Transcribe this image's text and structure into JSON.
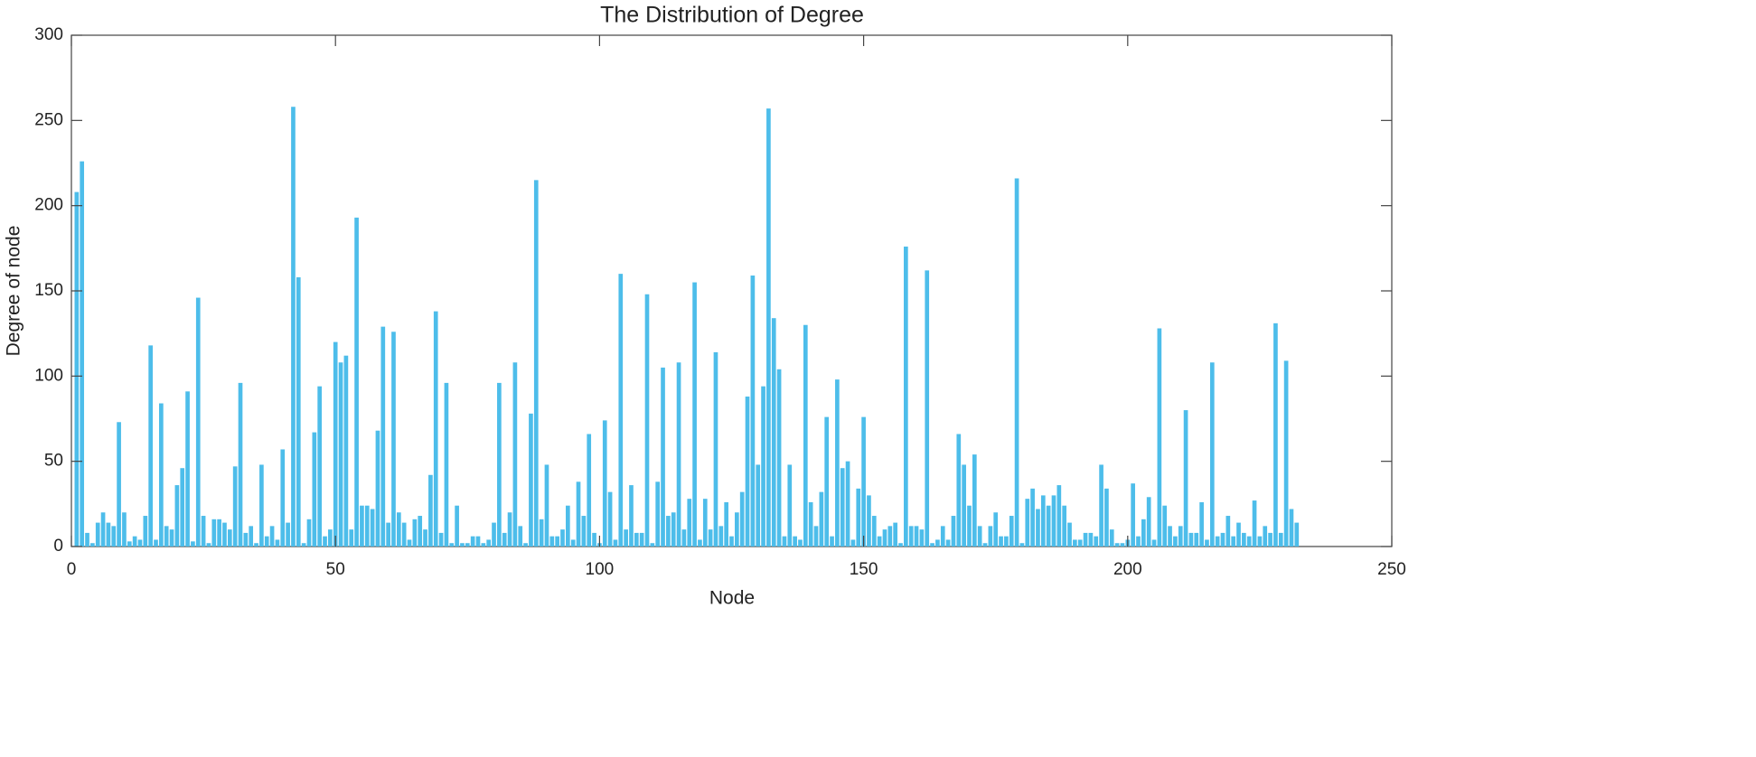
{
  "chart_data": {
    "type": "bar",
    "title": "The Distribution of Degree",
    "xlabel": "Node",
    "ylabel": "Degree of node",
    "color": "#4dbdea",
    "x": [
      1,
      2,
      3,
      4,
      5,
      6,
      7,
      8,
      9,
      10,
      11,
      12,
      13,
      14,
      15,
      16,
      17,
      18,
      19,
      20,
      21,
      22,
      23,
      24,
      25,
      26,
      27,
      28,
      29,
      30,
      31,
      32,
      33,
      34,
      35,
      36,
      37,
      38,
      39,
      40,
      41,
      42,
      43,
      44,
      45,
      46,
      47,
      48,
      49,
      50,
      51,
      52,
      53,
      54,
      55,
      56,
      57,
      58,
      59,
      60,
      61,
      62,
      63,
      64,
      65,
      66,
      67,
      68,
      69,
      70,
      71,
      72,
      73,
      74,
      75,
      76,
      77,
      78,
      79,
      80,
      81,
      82,
      83,
      84,
      85,
      86,
      87,
      88,
      89,
      90,
      91,
      92,
      93,
      94,
      95,
      96,
      97,
      98,
      99,
      100,
      101,
      102,
      103,
      104,
      105,
      106,
      107,
      108,
      109,
      110,
      111,
      112,
      113,
      114,
      115,
      116,
      117,
      118,
      119,
      120,
      121,
      122,
      123,
      124,
      125,
      126,
      127,
      128,
      129,
      130,
      131,
      132,
      133,
      134,
      135,
      136,
      137,
      138,
      139,
      140,
      141,
      142,
      143,
      144,
      145,
      146,
      147,
      148,
      149,
      150,
      151,
      152,
      153,
      154,
      155,
      156,
      157,
      158,
      159,
      160,
      161,
      162,
      163,
      164,
      165,
      166,
      167,
      168,
      169,
      170,
      171,
      172,
      173,
      174,
      175,
      176,
      177,
      178,
      179,
      180,
      181,
      182,
      183,
      184,
      185,
      186,
      187,
      188,
      189,
      190,
      191,
      192,
      193,
      194,
      195,
      196,
      197,
      198,
      199,
      200,
      201,
      202,
      203,
      204,
      205,
      206,
      207,
      208,
      209,
      210,
      211,
      212,
      213,
      214,
      215,
      216,
      217,
      218,
      219,
      220,
      221,
      222,
      223,
      224,
      225,
      226,
      227,
      228,
      229,
      230,
      231,
      232
    ],
    "values": [
      208,
      226,
      8,
      2,
      14,
      20,
      14,
      12,
      73,
      20,
      3,
      6,
      4,
      18,
      118,
      4,
      84,
      12,
      10,
      36,
      46,
      91,
      3,
      146,
      18,
      2,
      16,
      16,
      14,
      10,
      47,
      96,
      8,
      12,
      2,
      48,
      6,
      12,
      4,
      57,
      14,
      258,
      158,
      2,
      16,
      67,
      94,
      6,
      10,
      120,
      108,
      112,
      10,
      193,
      24,
      24,
      22,
      68,
      129,
      14,
      126,
      20,
      14,
      4,
      16,
      18,
      10,
      42,
      138,
      8,
      96,
      2,
      24,
      2,
      2,
      6,
      6,
      2,
      4,
      14,
      96,
      8,
      20,
      108,
      12,
      2,
      78,
      215,
      16,
      48,
      6,
      6,
      10,
      24,
      4,
      38,
      18,
      66,
      8,
      2,
      74,
      32,
      4,
      160,
      10,
      36,
      8,
      8,
      148,
      2,
      38,
      105,
      18,
      20,
      108,
      10,
      28,
      155,
      4,
      28,
      10,
      114,
      12,
      26,
      6,
      20,
      32,
      88,
      159,
      48,
      94,
      257,
      134,
      104,
      6,
      48,
      6,
      4,
      130,
      26,
      12,
      32,
      76,
      6,
      98,
      46,
      50,
      4,
      34,
      76,
      30,
      18,
      6,
      10,
      12,
      14,
      2,
      176,
      12,
      12,
      10,
      162,
      2,
      4,
      12,
      4,
      18,
      66,
      48,
      24,
      54,
      12,
      2,
      12,
      20,
      6,
      6,
      18,
      216,
      2,
      28,
      34,
      22,
      30,
      24,
      30,
      36,
      24,
      14,
      4,
      4,
      8,
      8,
      6,
      48,
      34,
      10,
      2,
      2,
      4,
      37,
      6,
      16,
      29,
      4,
      128,
      24,
      12,
      6,
      12,
      80,
      8,
      8,
      26,
      4,
      108,
      6,
      8,
      18,
      6,
      14,
      8,
      6,
      27,
      6,
      12,
      8,
      131,
      8,
      109,
      22,
      14
    ],
    "xlim": [
      0,
      250
    ],
    "xticks": [
      0,
      50,
      100,
      150,
      200,
      250
    ],
    "ylim": [
      0,
      300
    ],
    "yticks": [
      0,
      50,
      100,
      150,
      200,
      250,
      300
    ]
  }
}
